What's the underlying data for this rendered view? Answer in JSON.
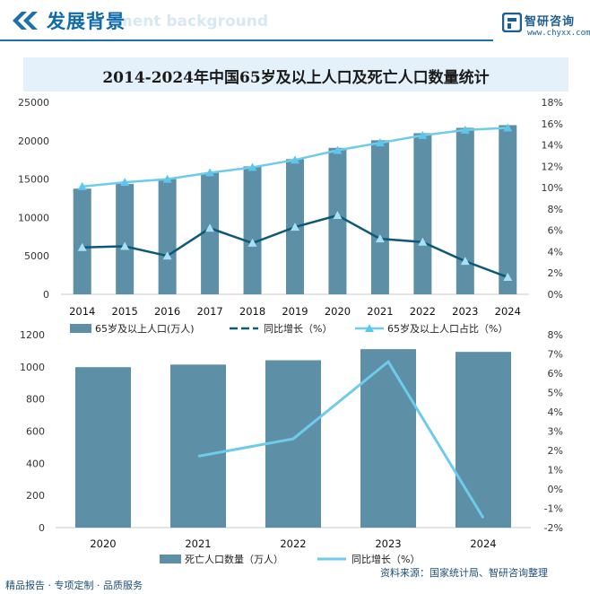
{
  "header": {
    "title": "发展背景",
    "subtitle": "ment background",
    "logo_name": "智研咨询",
    "logo_url": "www.chyxx.com"
  },
  "footer": {
    "left": "精品报告 · 专项定制 · 品质服务",
    "source": "资料来源：国家统计局、智研咨询整理"
  },
  "colors": {
    "bar": "#5d8fa6",
    "dark_line": "#0d5a78",
    "light_line": "#6ecbec",
    "title_band": "#e4f1fb"
  },
  "chart_data": [
    {
      "type": "bar",
      "title": "2014-2024年中国65岁及以上人口及死亡人口数量统计",
      "categories": [
        "2014",
        "2015",
        "2016",
        "2017",
        "2018",
        "2019",
        "2020",
        "2021",
        "2022",
        "2023",
        "2024"
      ],
      "ylim": [
        0,
        25000
      ],
      "yticks": [
        "0",
        "5000",
        "10000",
        "15000",
        "20000",
        "25000"
      ],
      "y2lim": [
        0,
        18
      ],
      "y2ticks": [
        "0%",
        "2%",
        "4%",
        "6%",
        "8%",
        "10%",
        "12%",
        "14%",
        "16%",
        "18%"
      ],
      "series": [
        {
          "name": "65岁及以上人口(万人)",
          "type": "bar",
          "axis": "left",
          "values": [
            13755,
            14386,
            15003,
            15831,
            16658,
            17603,
            19064,
            20056,
            20978,
            21676,
            22023
          ]
        },
        {
          "name": "同比增长（%）",
          "type": "line",
          "axis": "right",
          "values": [
            4.4,
            4.5,
            3.6,
            6.2,
            4.8,
            6.3,
            7.4,
            5.2,
            4.9,
            3.1,
            1.6
          ]
        },
        {
          "name": "65岁及以上人口占比（%）",
          "type": "line",
          "axis": "right",
          "values": [
            10.1,
            10.5,
            10.8,
            11.4,
            11.9,
            12.6,
            13.5,
            14.2,
            14.9,
            15.4,
            15.6
          ]
        }
      ],
      "grid": false,
      "legend": "bottom"
    },
    {
      "type": "bar",
      "categories": [
        "2020",
        "2021",
        "2022",
        "2023",
        "2024"
      ],
      "ylim": [
        0,
        1200
      ],
      "yticks": [
        "0",
        "200",
        "400",
        "600",
        "800",
        "1000",
        "1200"
      ],
      "y2lim": [
        -2,
        8
      ],
      "y2ticks": [
        "-2%",
        "-1%",
        "0%",
        "1%",
        "2%",
        "3%",
        "4%",
        "5%",
        "6%",
        "7%",
        "8%"
      ],
      "series": [
        {
          "name": "死亡人口数量（万人）",
          "type": "bar",
          "axis": "left",
          "values": [
            998,
            1014,
            1041,
            1110,
            1093
          ]
        },
        {
          "name": "同比增长（%）",
          "type": "line",
          "axis": "right",
          "values": [
            null,
            1.7,
            2.6,
            6.6,
            -1.5
          ]
        }
      ],
      "grid": false,
      "legend": "bottom"
    }
  ]
}
